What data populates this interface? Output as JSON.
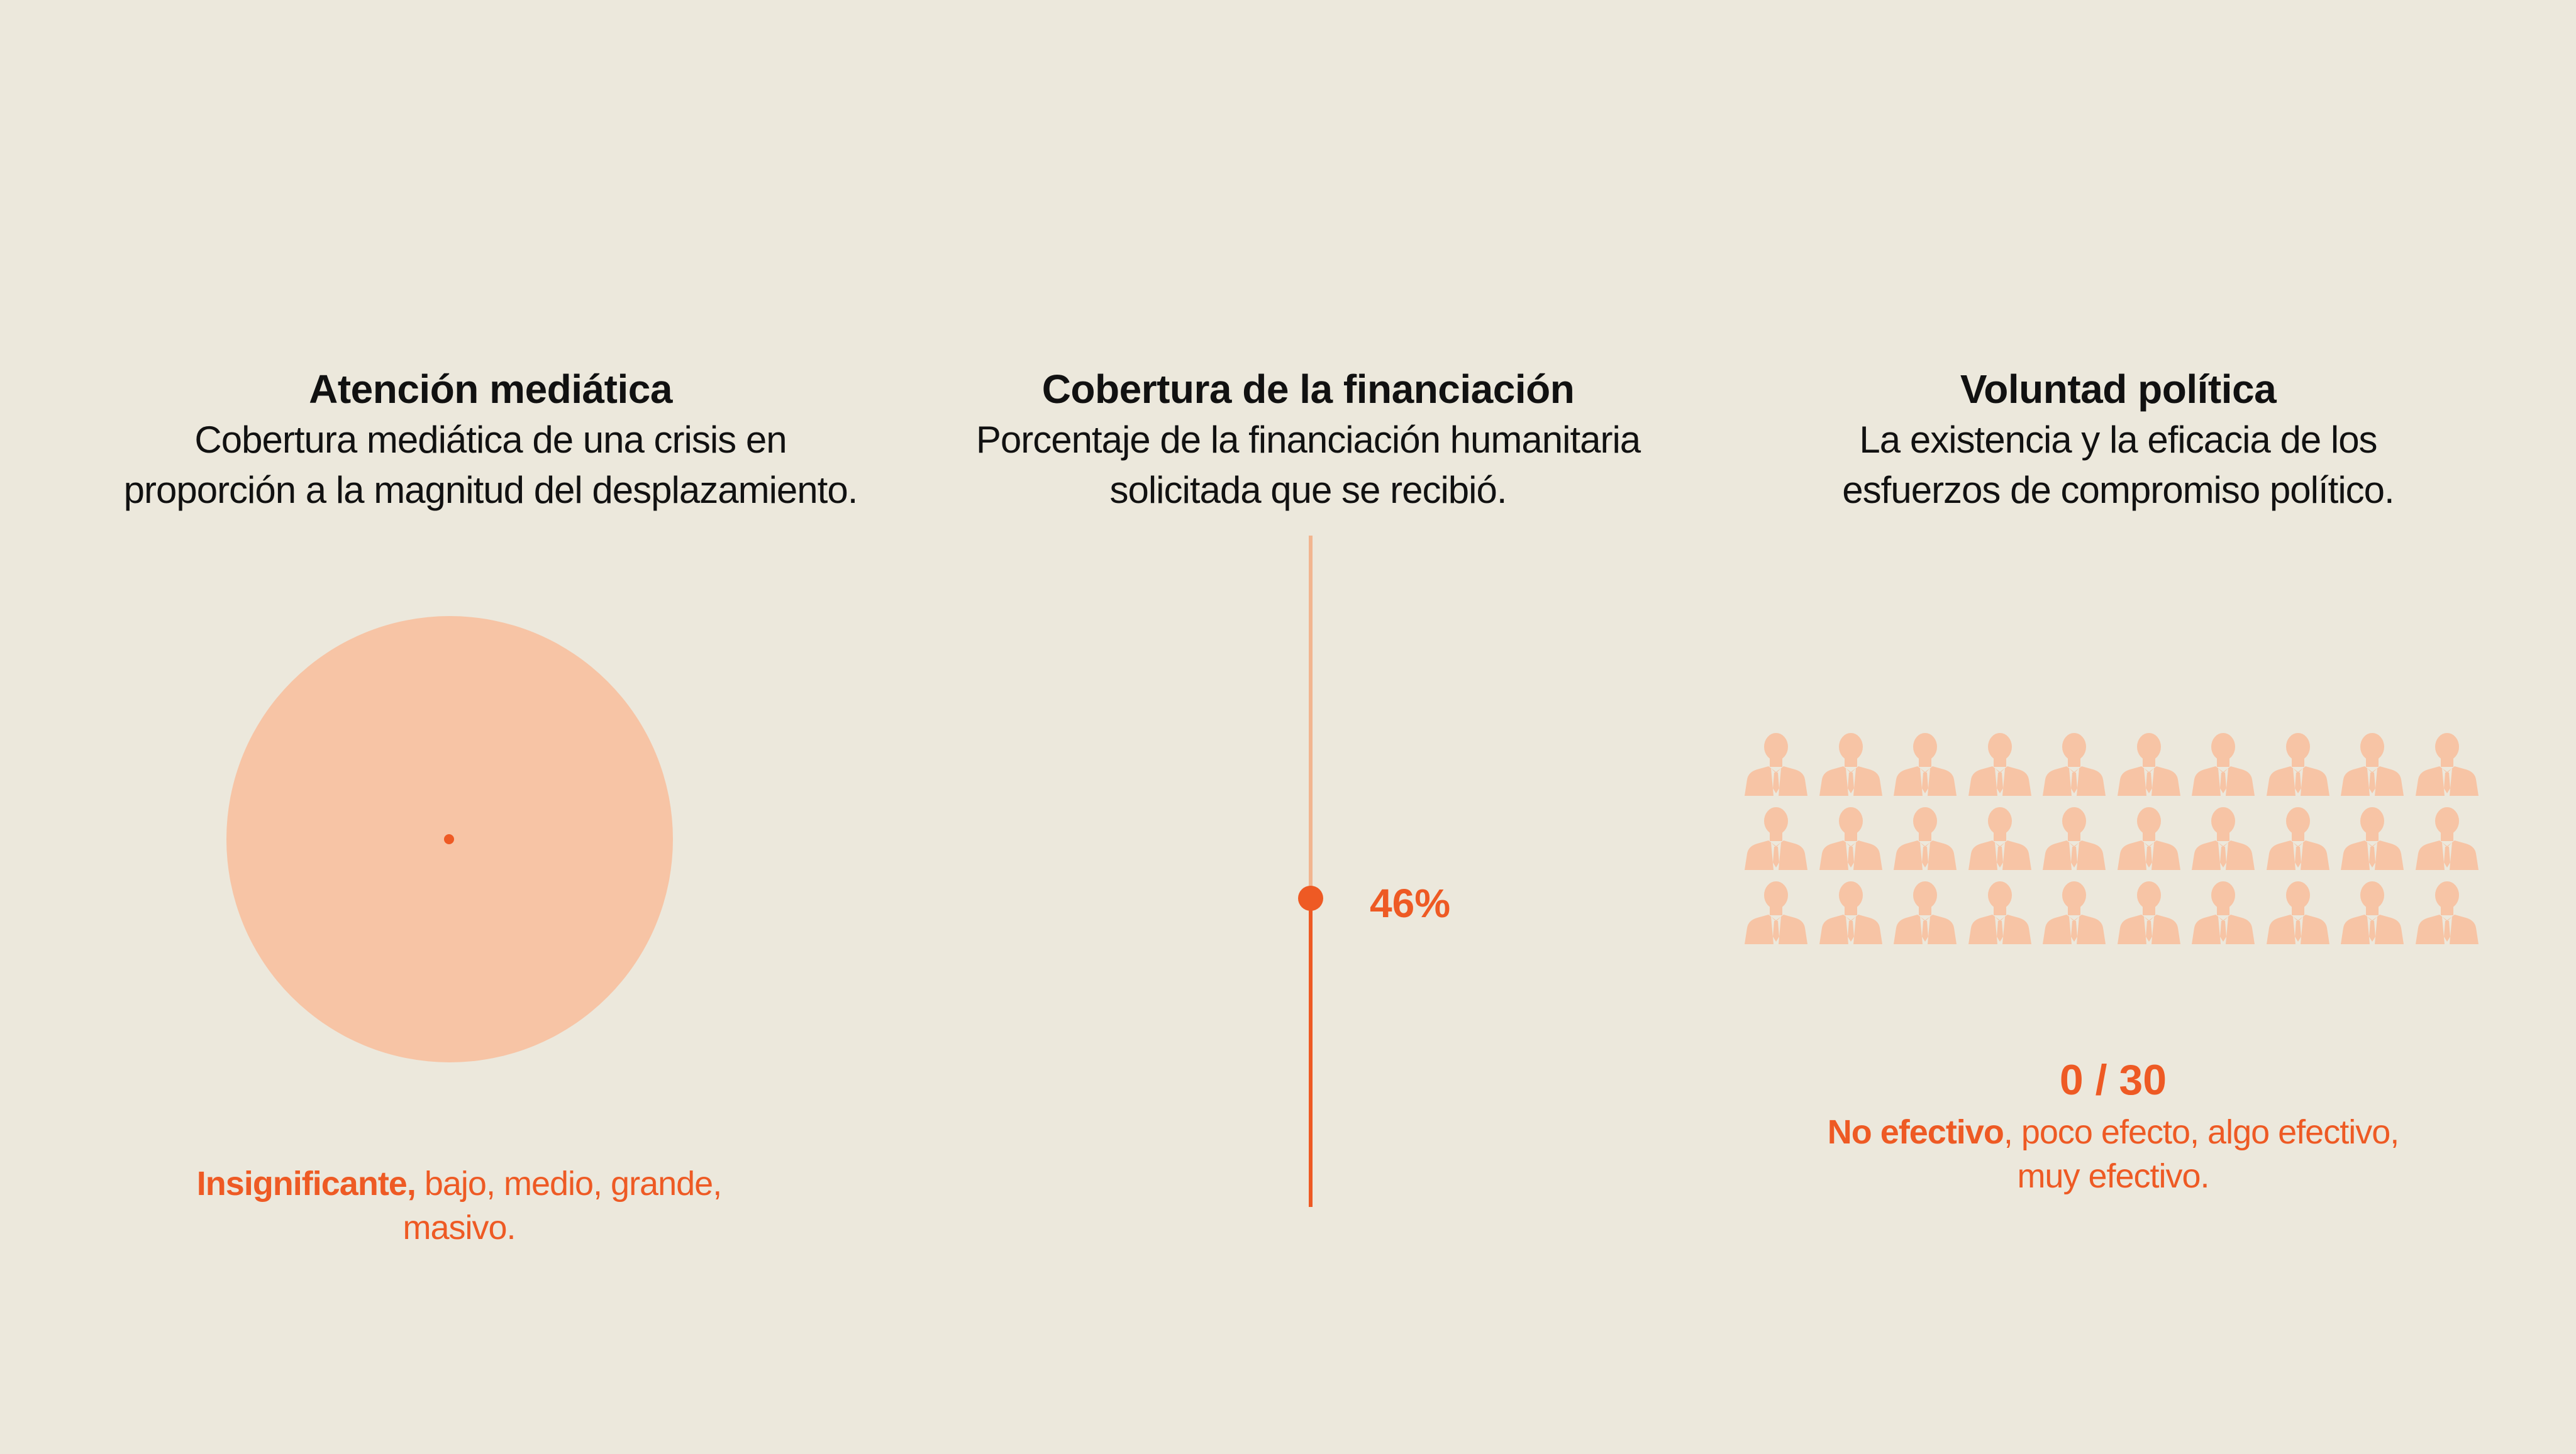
{
  "colors": {
    "background": "#ECE8DC",
    "accent": "#EE5A24",
    "accent_light": "#F7C4A5",
    "track_light": "#F2B590",
    "text": "#111111"
  },
  "media_attention": {
    "title": "Atención mediática",
    "description": "Cobertura mediática de una crisis en proporción a la magnitud del desplazamiento.",
    "level": "Insignificante",
    "scale_highlight": "Insignificante,",
    "scale_rest": " bajo, medio, grande, masivo.",
    "icon": "circle-icon"
  },
  "funding_coverage": {
    "title": "Cobertura de la financiación",
    "description": "Porcentaje de la financiación humanitaria solicitada que se recibió.",
    "percent": 46,
    "percent_label": "46%"
  },
  "political_will": {
    "title": "Voluntad política",
    "description": "La existencia y la eficacia de los esfuerzos de compromiso político.",
    "score": 0,
    "total": 30,
    "score_label": "0 / 30",
    "scale_highlight": "No efectivo",
    "scale_rest": ", poco efecto, algo efectivo, muy efectivo.",
    "icon": "person-icon"
  }
}
